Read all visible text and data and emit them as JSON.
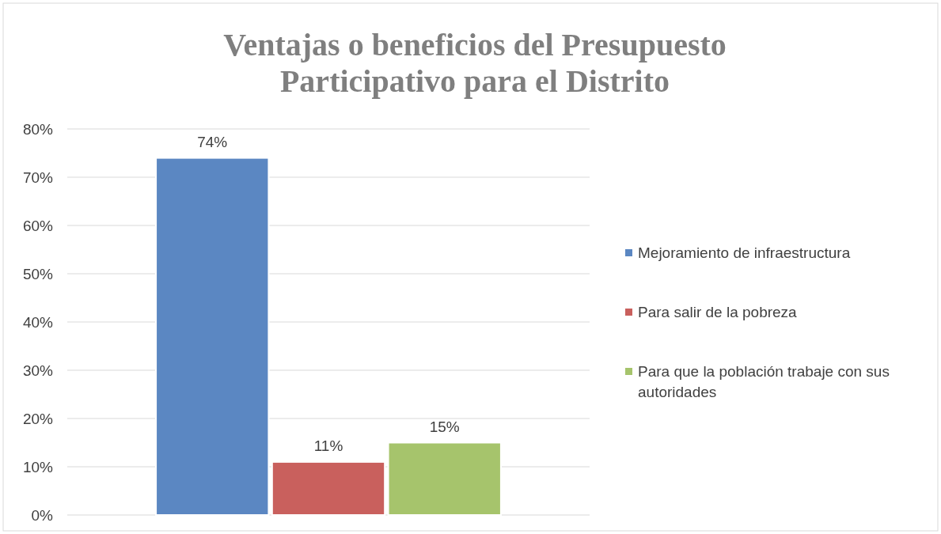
{
  "chart_data": {
    "type": "bar",
    "title": "Ventajas o beneficios del Presupuesto Participativo para el Distrito",
    "categories": [
      null
    ],
    "series": [
      {
        "name": "Mejoramiento de infraestructura",
        "color": "#5b87c2",
        "values": [
          74
        ],
        "value_labels": [
          "74%"
        ]
      },
      {
        "name": "Para salir de la pobreza",
        "color": "#c9605d",
        "values": [
          11
        ],
        "value_labels": [
          "11%"
        ]
      },
      {
        "name": "Para que la población trabaje con sus autoridades",
        "color": "#a6c46c",
        "values": [
          15
        ],
        "value_labels": [
          "15%"
        ]
      }
    ],
    "ylim": [
      0,
      80
    ],
    "yticks": [
      {
        "value": 0,
        "label": "0%"
      },
      {
        "value": 10,
        "label": "10%"
      },
      {
        "value": 20,
        "label": "20%"
      },
      {
        "value": 30,
        "label": "30%"
      },
      {
        "value": 40,
        "label": "40%"
      },
      {
        "value": 50,
        "label": "50%"
      },
      {
        "value": 60,
        "label": "60%"
      },
      {
        "value": 70,
        "label": "70%"
      },
      {
        "value": 80,
        "label": "80%"
      }
    ],
    "grid": "y",
    "legend": "right"
  }
}
